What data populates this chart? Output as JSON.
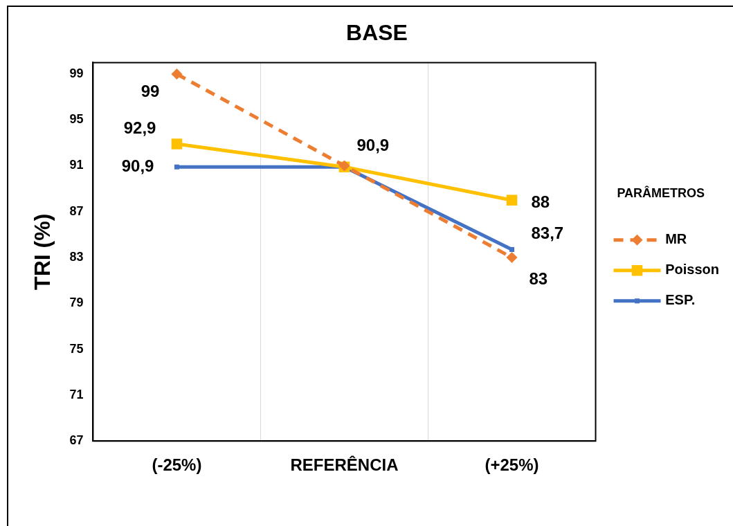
{
  "chart_data": {
    "type": "line",
    "title": "BASE",
    "ylabel": "TRI (%)",
    "legend_title": "PARÂMETROS",
    "categories": [
      "(-25%)",
      "REFERÊNCIA",
      "(+25%)"
    ],
    "ylim": [
      67,
      100
    ],
    "yticks": [
      67,
      71,
      75,
      79,
      83,
      87,
      91,
      95,
      99
    ],
    "grid": "x",
    "legend": "right",
    "series": [
      {
        "name": "MR",
        "color": "#ed7d31",
        "values": [
          99,
          91,
          83
        ],
        "value_labels": [
          "99",
          null,
          "83"
        ],
        "marker": "diamond",
        "line_style": "dashed"
      },
      {
        "name": "Poisson",
        "color": "#ffc000",
        "values": [
          92.9,
          90.9,
          88
        ],
        "value_labels": [
          "92,9",
          null,
          "88"
        ],
        "marker": "square",
        "line_style": "solid"
      },
      {
        "name": "ESP.",
        "color": "#4472c4",
        "values": [
          90.9,
          90.9,
          83.7
        ],
        "value_labels": [
          "90,9",
          "90,9",
          "83,7"
        ],
        "marker": "square",
        "line_style": "solid"
      }
    ]
  }
}
